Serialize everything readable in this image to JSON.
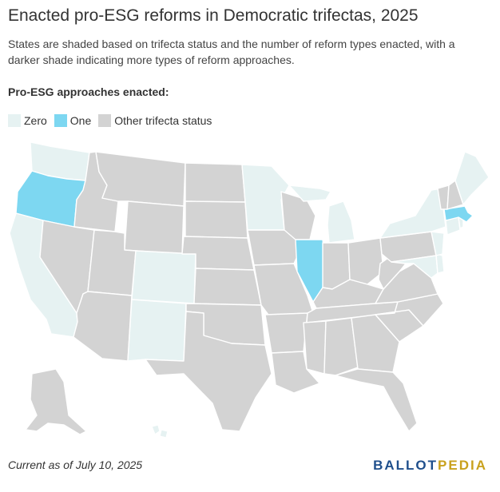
{
  "title": "Enacted pro-ESG reforms in Democratic trifectas, 2025",
  "subtitle": "States are shaded based on trifecta status and the number of reform types enacted, with a darker shade indicating more types of reform approaches.",
  "legend": {
    "title": "Pro-ESG approaches enacted:",
    "items": [
      {
        "label": "Zero",
        "color": "#e6f2f2"
      },
      {
        "label": "One",
        "color": "#7dd7f1"
      },
      {
        "label": "Other trifecta status",
        "color": "#d3d3d3"
      }
    ]
  },
  "colors": {
    "zero": "#e6f2f2",
    "one": "#7dd7f1",
    "other": "#d3d3d3"
  },
  "map": {
    "zero": [
      "Washington",
      "California",
      "Colorado",
      "New Mexico",
      "Minnesota",
      "Michigan",
      "New York",
      "Maine",
      "New Jersey",
      "Delaware",
      "Maryland",
      "Rhode Island",
      "Connecticut",
      "Hawaii"
    ],
    "one": [
      "Oregon",
      "Illinois",
      "Massachusetts"
    ]
  },
  "footer": {
    "note": "Current as of  July 10, 2025",
    "brand_part1": "BALLOT",
    "brand_part2": "PEDIA"
  }
}
